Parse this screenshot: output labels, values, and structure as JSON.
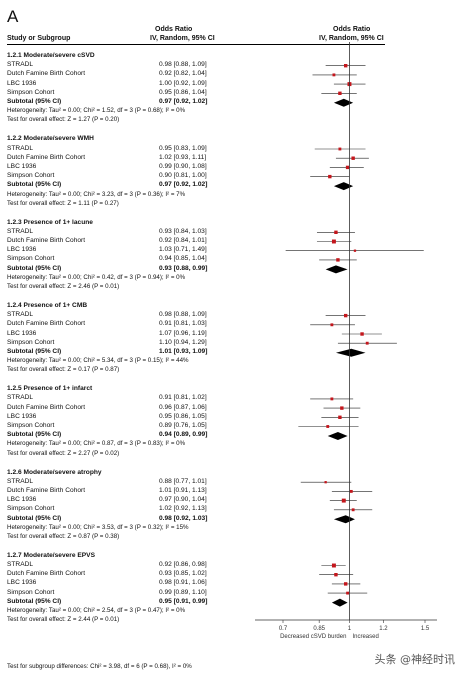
{
  "panel_label": "A",
  "header": {
    "col1": "Study or Subgroup",
    "or_title": "Odds Ratio",
    "or_sub": "IV, Random, 95% CI",
    "plot_title": "Odds Ratio",
    "plot_sub": "IV, Random, 95% CI"
  },
  "footer": {
    "subgroup_test": "Test for subgroup differences: Chi² = 3.98, df = 6 (P = 0.68), I² = 0%",
    "watermark": "头条 @神经时讯"
  },
  "chart_data": {
    "type": "forest",
    "x_scale": "log",
    "xlim": [
      0.7,
      1.5
    ],
    "x_ticks": [
      0.7,
      0.85,
      1,
      1.2,
      1.5
    ],
    "x_tick_labels": [
      "0.7",
      "0.85",
      "1",
      "1.2",
      "1.5"
    ],
    "favours_left": "Decreased cSVD burden",
    "favours_right": "Increased",
    "groups": [
      {
        "title": "1.2.1 Moderate/severe cSVD",
        "studies": [
          {
            "name": "STRADL",
            "or": 0.98,
            "lo": 0.88,
            "hi": 1.09,
            "ci_text": "0.98 [0.88, 1.09]",
            "w": 4
          },
          {
            "name": "Dutch Famine Birth Cohort",
            "or": 0.92,
            "lo": 0.82,
            "hi": 1.04,
            "ci_text": "0.92 [0.82, 1.04]",
            "w": 3
          },
          {
            "name": "LBC 1936",
            "or": 1.0,
            "lo": 0.92,
            "hi": 1.09,
            "ci_text": "1.00 [0.92, 1.09]",
            "w": 5
          },
          {
            "name": "Simpson Cohort",
            "or": 0.95,
            "lo": 0.86,
            "hi": 1.04,
            "ci_text": "0.95 [0.86, 1.04]",
            "w": 4
          }
        ],
        "subtotal": {
          "label": "Subtotal (95% CI)",
          "or": 0.97,
          "lo": 0.92,
          "hi": 1.02,
          "ci_text": "0.97 [0.92, 1.02]"
        },
        "heterogeneity": "Heterogeneity: Tau² = 0.00; Chi² = 1.52, df = 3 (P = 0.68); I² = 0%",
        "overall": "Test for overall effect: Z = 1.27 (P = 0.20)"
      },
      {
        "title": "1.2.2 Moderate/severe WMH",
        "studies": [
          {
            "name": "STRADL",
            "or": 0.95,
            "lo": 0.83,
            "hi": 1.09,
            "ci_text": "0.95 [0.83, 1.09]",
            "w": 3
          },
          {
            "name": "Dutch Famine Birth Cohort",
            "or": 1.02,
            "lo": 0.93,
            "hi": 1.11,
            "ci_text": "1.02 [0.93, 1.11]",
            "w": 4
          },
          {
            "name": "LBC 1936",
            "or": 0.99,
            "lo": 0.9,
            "hi": 1.08,
            "ci_text": "0.99 [0.90, 1.08]",
            "w": 4
          },
          {
            "name": "Simpson Cohort",
            "or": 0.9,
            "lo": 0.81,
            "hi": 1.0,
            "ci_text": "0.90 [0.81, 1.00]",
            "w": 4
          }
        ],
        "subtotal": {
          "label": "Subtotal (95% CI)",
          "or": 0.97,
          "lo": 0.92,
          "hi": 1.02,
          "ci_text": "0.97 [0.92, 1.02]"
        },
        "heterogeneity": "Heterogeneity: Tau² = 0.00; Chi² = 3.23, df = 3 (P = 0.36); I² = 7%",
        "overall": "Test for overall effect: Z = 1.11 (P = 0.27)"
      },
      {
        "title": "1.2.3 Presence of 1+ lacune",
        "studies": [
          {
            "name": "STRADL",
            "or": 0.93,
            "lo": 0.84,
            "hi": 1.03,
            "ci_text": "0.93 [0.84, 1.03]",
            "w": 4
          },
          {
            "name": "Dutch Famine Birth Cohort",
            "or": 0.92,
            "lo": 0.84,
            "hi": 1.01,
            "ci_text": "0.92 [0.84, 1.01]",
            "w": 5
          },
          {
            "name": "LBC 1936",
            "or": 1.03,
            "lo": 0.71,
            "hi": 1.49,
            "ci_text": "1.03 [0.71, 1.49]",
            "w": 2
          },
          {
            "name": "Simpson Cohort",
            "or": 0.94,
            "lo": 0.85,
            "hi": 1.04,
            "ci_text": "0.94 [0.85, 1.04]",
            "w": 4
          }
        ],
        "subtotal": {
          "label": "Subtotal (95% CI)",
          "or": 0.93,
          "lo": 0.88,
          "hi": 0.99,
          "ci_text": "0.93 [0.88, 0.99]"
        },
        "heterogeneity": "Heterogeneity: Tau² = 0.00; Chi² = 0.42, df = 3 (P = 0.94); I² = 0%",
        "overall": "Test for overall effect: Z = 2.46 (P = 0.01)"
      },
      {
        "title": "1.2.4 Presence of 1+ CMB",
        "studies": [
          {
            "name": "STRADL",
            "or": 0.98,
            "lo": 0.88,
            "hi": 1.09,
            "ci_text": "0.98 [0.88, 1.09]",
            "w": 4
          },
          {
            "name": "Dutch Famine Birth Cohort",
            "or": 0.91,
            "lo": 0.81,
            "hi": 1.03,
            "ci_text": "0.91 [0.81, 1.03]",
            "w": 3
          },
          {
            "name": "LBC 1936",
            "or": 1.07,
            "lo": 0.96,
            "hi": 1.19,
            "ci_text": "1.07 [0.96, 1.19]",
            "w": 4
          },
          {
            "name": "Simpson Cohort",
            "or": 1.1,
            "lo": 0.94,
            "hi": 1.29,
            "ci_text": "1.10 [0.94, 1.29]",
            "w": 3
          }
        ],
        "subtotal": {
          "label": "Subtotal (95% CI)",
          "or": 1.01,
          "lo": 0.93,
          "hi": 1.09,
          "ci_text": "1.01 [0.93, 1.09]"
        },
        "heterogeneity": "Heterogeneity: Tau² = 0.00; Chi² = 5.34, df = 3 (P = 0.15); I² = 44%",
        "overall": "Test for overall effect: Z = 0.17 (P = 0.87)"
      },
      {
        "title": "1.2.5 Presence of 1+ infarct",
        "studies": [
          {
            "name": "STRADL",
            "or": 0.91,
            "lo": 0.81,
            "hi": 1.02,
            "ci_text": "0.91 [0.81, 1.02]",
            "w": 3
          },
          {
            "name": "Dutch Famine Birth Cohort",
            "or": 0.96,
            "lo": 0.87,
            "hi": 1.06,
            "ci_text": "0.96 [0.87, 1.06]",
            "w": 4
          },
          {
            "name": "LBC 1936",
            "or": 0.95,
            "lo": 0.86,
            "hi": 1.05,
            "ci_text": "0.95 [0.86, 1.05]",
            "w": 4
          },
          {
            "name": "Simpson Cohort",
            "or": 0.89,
            "lo": 0.76,
            "hi": 1.05,
            "ci_text": "0.89 [0.76, 1.05]",
            "w": 3
          }
        ],
        "subtotal": {
          "label": "Subtotal (95% CI)",
          "or": 0.94,
          "lo": 0.89,
          "hi": 0.99,
          "ci_text": "0.94 [0.89, 0.99]"
        },
        "heterogeneity": "Heterogeneity: Tau² = 0.00; Chi² = 0.87, df = 3 (P = 0.83); I² = 0%",
        "overall": "Test for overall effect: Z = 2.27 (P = 0.02)"
      },
      {
        "title": "1.2.6 Moderate/severe atrophy",
        "studies": [
          {
            "name": "STRADL",
            "or": 0.88,
            "lo": 0.77,
            "hi": 1.01,
            "ci_text": "0.88 [0.77, 1.01]",
            "w": 2
          },
          {
            "name": "Dutch Famine Birth Cohort",
            "or": 1.01,
            "lo": 0.91,
            "hi": 1.13,
            "ci_text": "1.01 [0.91, 1.13]",
            "w": 3
          },
          {
            "name": "LBC 1936",
            "or": 0.97,
            "lo": 0.9,
            "hi": 1.04,
            "ci_text": "0.97 [0.90, 1.04]",
            "w": 5
          },
          {
            "name": "Simpson Cohort",
            "or": 1.02,
            "lo": 0.92,
            "hi": 1.13,
            "ci_text": "1.02 [0.92, 1.13]",
            "w": 3
          }
        ],
        "subtotal": {
          "label": "Subtotal (95% CI)",
          "or": 0.98,
          "lo": 0.92,
          "hi": 1.03,
          "ci_text": "0.98 [0.92, 1.03]"
        },
        "heterogeneity": "Heterogeneity: Tau² = 0.00; Chi² = 3.53, df = 3 (P = 0.32); I² = 15%",
        "overall": "Test for overall effect: Z = 0.87 (P = 0.38)"
      },
      {
        "title": "1.2.7 Moderate/severe EPVS",
        "studies": [
          {
            "name": "STRADL",
            "or": 0.92,
            "lo": 0.86,
            "hi": 0.98,
            "ci_text": "0.92 [0.86, 0.98]",
            "w": 5
          },
          {
            "name": "Dutch Famine Birth Cohort",
            "or": 0.93,
            "lo": 0.85,
            "hi": 1.02,
            "ci_text": "0.93 [0.85, 1.02]",
            "w": 4
          },
          {
            "name": "LBC 1936",
            "or": 0.98,
            "lo": 0.91,
            "hi": 1.06,
            "ci_text": "0.98 [0.91, 1.06]",
            "w": 4
          },
          {
            "name": "Simpson Cohort",
            "or": 0.99,
            "lo": 0.89,
            "hi": 1.1,
            "ci_text": "0.99 [0.89, 1.10]",
            "w": 3
          }
        ],
        "subtotal": {
          "label": "Subtotal (95% CI)",
          "or": 0.95,
          "lo": 0.91,
          "hi": 0.99,
          "ci_text": "0.95 [0.91, 0.99]"
        },
        "heterogeneity": "Heterogeneity: Tau² = 0.00; Chi² = 2.54, df = 3 (P = 0.47); I² = 0%",
        "overall": "Test for overall effect: Z = 2.44 (P = 0.01)"
      }
    ]
  }
}
